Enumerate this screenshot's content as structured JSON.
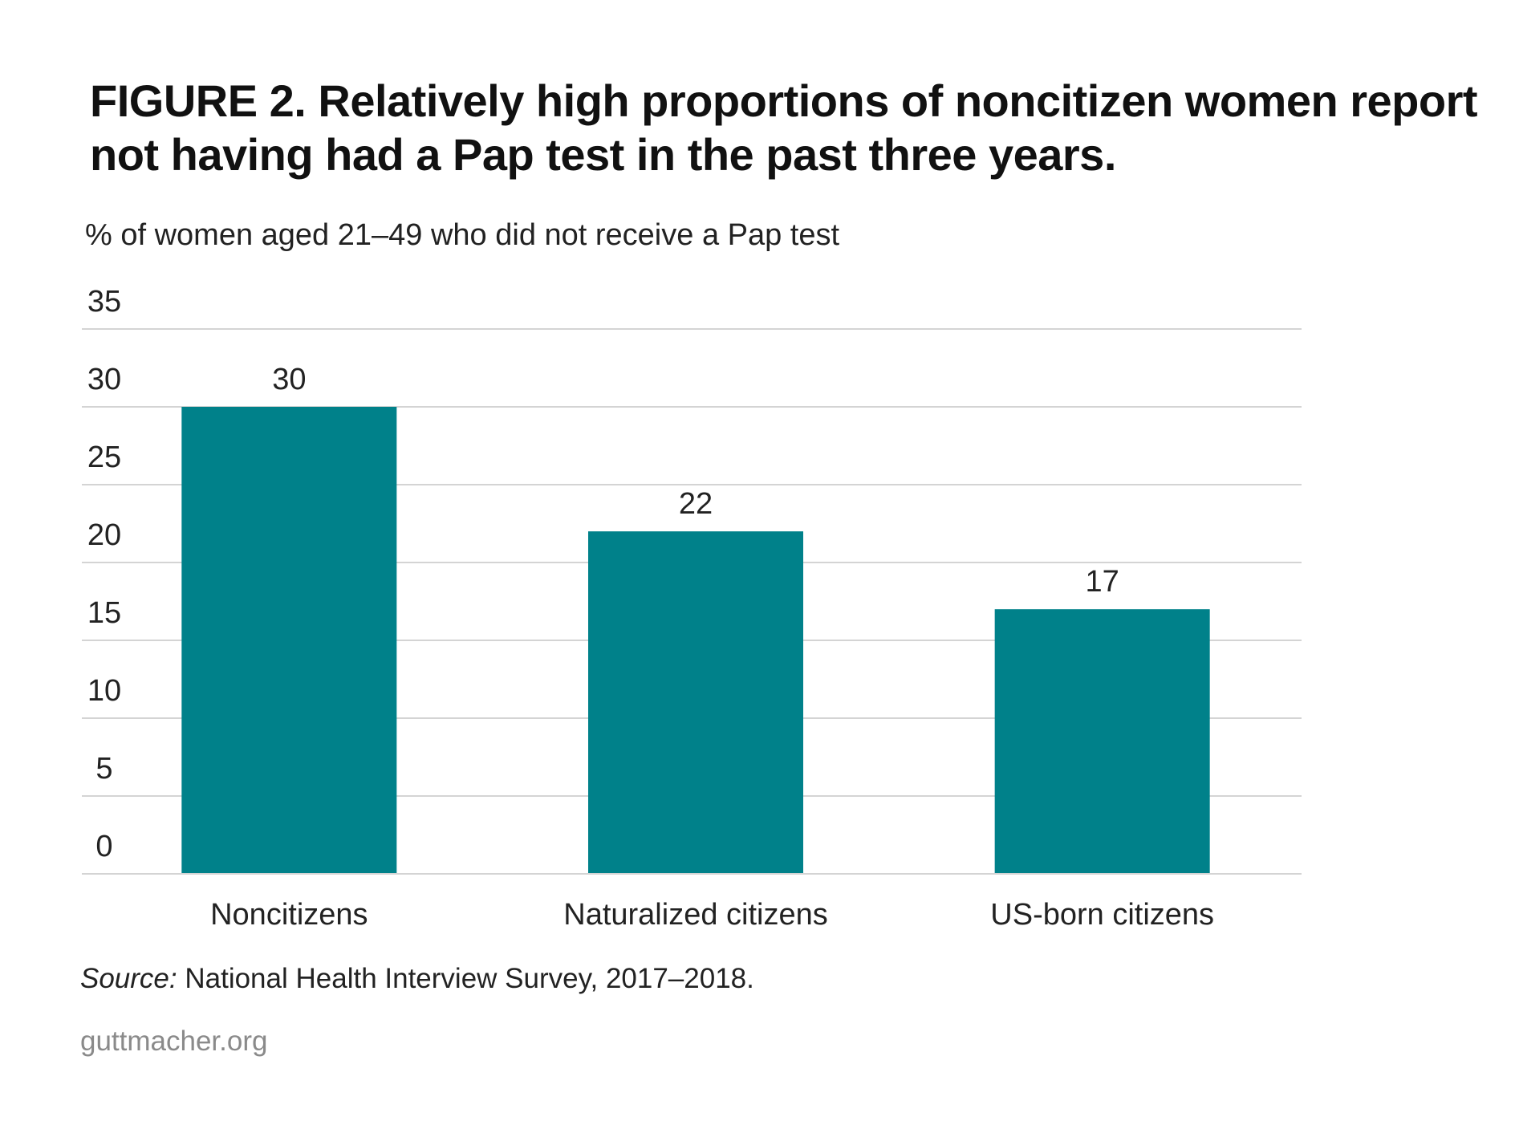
{
  "title": "FIGURE 2. Relatively high proportions of noncitizen women report not having had a Pap test in the past three years.",
  "source_label": "Source:",
  "source_text": " National Health Interview Survey, 2017–2018.",
  "footer": "guttmacher.org",
  "colors": {
    "bar": "#00818a",
    "grid": "#d4d4d4",
    "text": "#222222"
  },
  "chart_data": {
    "type": "bar",
    "ylabel": "% of women aged 21–49 who did not receive a Pap test",
    "xlabel": "",
    "categories": [
      "Noncitizens",
      "Naturalized citizens",
      "US-born citizens"
    ],
    "values": [
      30,
      22,
      17
    ],
    "data_labels": [
      "30",
      "22",
      "17"
    ],
    "ylim": [
      0,
      35
    ],
    "yticks": [
      0,
      5,
      10,
      15,
      20,
      25,
      30,
      35
    ],
    "grid": true,
    "legend": "none"
  }
}
